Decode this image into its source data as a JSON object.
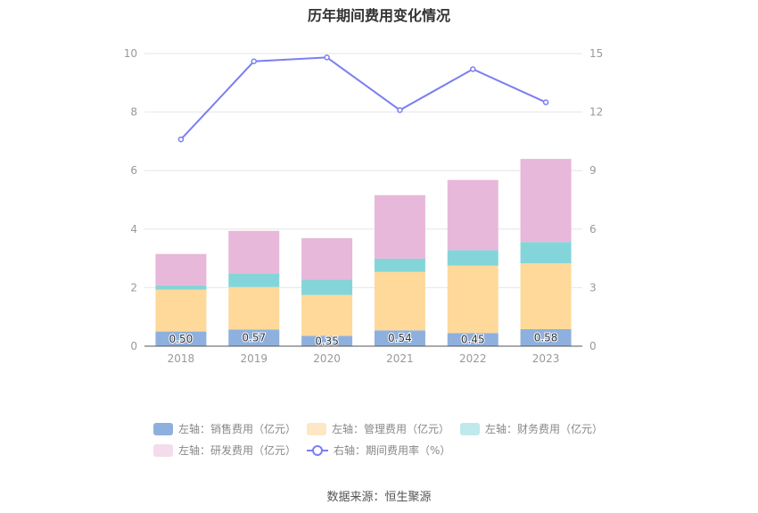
{
  "chart_data": {
    "type": "bar",
    "title": "历年期间费用变化情况",
    "categories": [
      "2018",
      "2019",
      "2020",
      "2021",
      "2022",
      "2023"
    ],
    "left_axis": {
      "ylim": [
        0,
        10
      ],
      "ticks": [
        0,
        2,
        4,
        6,
        8,
        10
      ]
    },
    "right_axis": {
      "ylim": [
        0,
        15
      ],
      "ticks": [
        0,
        3,
        6,
        9,
        12,
        15
      ]
    },
    "stacked": true,
    "series": [
      {
        "name": "左轴：销售费用（亿元）",
        "axis": "left",
        "color": "#8eb0de",
        "values": [
          0.5,
          0.57,
          0.35,
          0.54,
          0.45,
          0.58
        ],
        "labels": [
          "0.50",
          "0.57",
          "0.35",
          "0.54",
          "0.45",
          "0.58"
        ]
      },
      {
        "name": "左轴：管理费用（亿元）",
        "axis": "left",
        "color": "#fed99a",
        "values": [
          1.43,
          1.45,
          1.4,
          2.0,
          2.3,
          2.25
        ]
      },
      {
        "name": "左轴：财务费用（亿元）",
        "axis": "left",
        "color": "#84d5d9",
        "values": [
          0.15,
          0.45,
          0.52,
          0.45,
          0.53,
          0.73
        ]
      },
      {
        "name": "左轴：研发费用（亿元）",
        "axis": "left",
        "color": "#e7b8d9",
        "values": [
          1.07,
          1.47,
          1.42,
          2.17,
          2.4,
          2.84
        ]
      },
      {
        "name": "右轴：期间费用率（%）",
        "axis": "right",
        "type": "line",
        "color": "#7b7ff0",
        "values": [
          10.6,
          14.6,
          14.8,
          12.1,
          14.2,
          12.5
        ]
      }
    ],
    "grid": true,
    "legend_position": "bottom"
  },
  "legend": {
    "items": [
      {
        "label": "左轴：销售费用（亿元）",
        "color": "#8eb0de"
      },
      {
        "label": "左轴：管理费用（亿元）",
        "color": "#fde7c4"
      },
      {
        "label": "左轴：财务费用（亿元）",
        "color": "#bfe9ea"
      },
      {
        "label": "左轴：研发费用（亿元）",
        "color": "#f3dcec"
      },
      {
        "label": "右轴：期间费用率（%）",
        "color": "#7b7ff0"
      }
    ]
  },
  "source": "数据来源：恒生聚源"
}
